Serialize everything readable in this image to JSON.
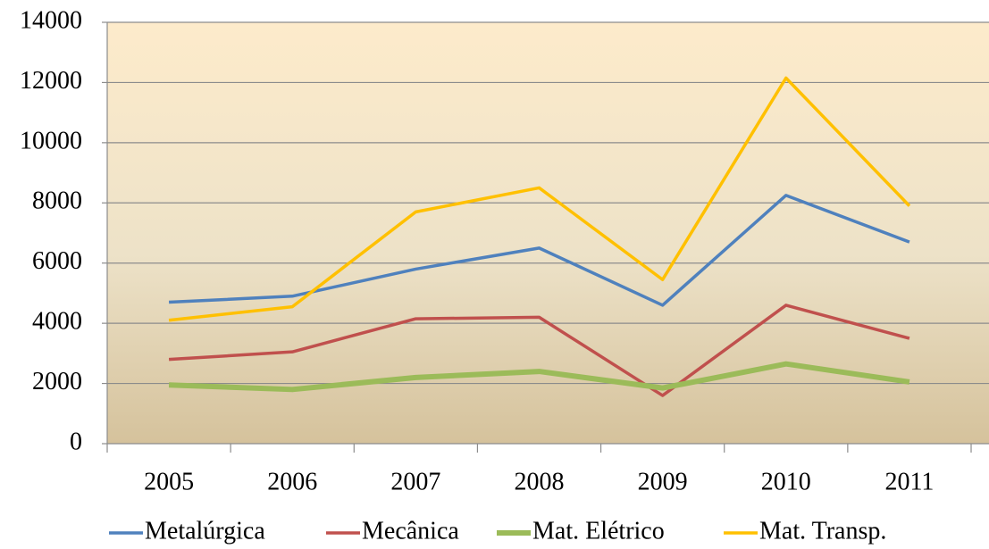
{
  "chart_data": {
    "type": "line",
    "categories": [
      "2005",
      "2006",
      "2007",
      "2008",
      "2009",
      "2010",
      "2011"
    ],
    "series": [
      {
        "name": "Metalúrgica",
        "color": "#4f81bd",
        "values": [
          4700,
          4900,
          5800,
          6500,
          4600,
          8250,
          6700
        ]
      },
      {
        "name": "Mecânica",
        "color": "#c0504d",
        "values": [
          2800,
          3050,
          4150,
          4200,
          1600,
          4600,
          3500
        ]
      },
      {
        "name": "Mat. Elétrico",
        "color": "#9bbb59",
        "values": [
          1950,
          1800,
          2200,
          2400,
          1850,
          2650,
          2050
        ]
      },
      {
        "name": "Mat. Transp.",
        "color": "#ffc000",
        "values": [
          4100,
          4550,
          7700,
          8500,
          5450,
          12150,
          7900
        ]
      }
    ],
    "ylim": [
      0,
      14000
    ],
    "yticks": [
      0,
      2000,
      4000,
      6000,
      8000,
      10000,
      12000,
      14000
    ],
    "grid": true,
    "legend": "bottom"
  }
}
